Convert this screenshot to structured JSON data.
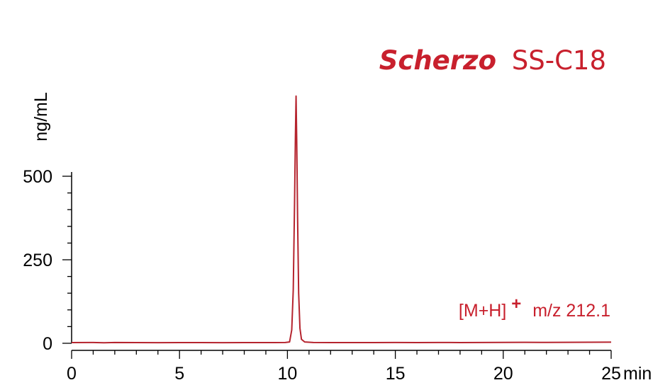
{
  "chart_data": {
    "type": "line",
    "title": {
      "italic_part": "Scherzo",
      "regular_part": "SS-C18"
    },
    "annotation": {
      "prefix": "[M+H]",
      "superscript": "+",
      "suffix": "m/z 212.1"
    },
    "xlabel": "min",
    "ylabel": "ng/mL",
    "xlim": [
      0,
      25
    ],
    "ylim": [
      0,
      500
    ],
    "x_ticks": [
      0,
      5,
      10,
      15,
      20,
      25
    ],
    "x_tick_labels": [
      "0",
      "5",
      "10",
      "15",
      "20",
      "25"
    ],
    "x_minor_step": 1,
    "y_ticks": [
      0,
      250,
      500
    ],
    "y_tick_labels": [
      "0",
      "250",
      "500"
    ],
    "y_minor_step": 50,
    "grid": false,
    "series": [
      {
        "color": "#b5242e",
        "points": [
          [
            0,
            2
          ],
          [
            1,
            2.5
          ],
          [
            1.5,
            1.5
          ],
          [
            2,
            2.5
          ],
          [
            3,
            2
          ],
          [
            4,
            1.8
          ],
          [
            5,
            2.2
          ],
          [
            6,
            2
          ],
          [
            7,
            1.9
          ],
          [
            8,
            2.1
          ],
          [
            8.8,
            2
          ],
          [
            9.4,
            2.2
          ],
          [
            9.9,
            2.5
          ],
          [
            10.1,
            4
          ],
          [
            10.2,
            40
          ],
          [
            10.27,
            160
          ],
          [
            10.33,
            420
          ],
          [
            10.37,
            620
          ],
          [
            10.4,
            740
          ],
          [
            10.43,
            610
          ],
          [
            10.47,
            380
          ],
          [
            10.52,
            150
          ],
          [
            10.58,
            45
          ],
          [
            10.65,
            12
          ],
          [
            10.8,
            4
          ],
          [
            11.2,
            2.5
          ],
          [
            12,
            2
          ],
          [
            13,
            2.2
          ],
          [
            14,
            2
          ],
          [
            15,
            2.3
          ],
          [
            16,
            2.1
          ],
          [
            17,
            2.4
          ],
          [
            18,
            2.2
          ],
          [
            19,
            2.5
          ],
          [
            20,
            2.6
          ],
          [
            21,
            2.8
          ],
          [
            22,
            2.7
          ],
          [
            23,
            3
          ],
          [
            24,
            3.2
          ],
          [
            25,
            3.5
          ]
        ]
      }
    ],
    "colors": {
      "accent": "#c8202d",
      "axis": "#000000"
    }
  }
}
